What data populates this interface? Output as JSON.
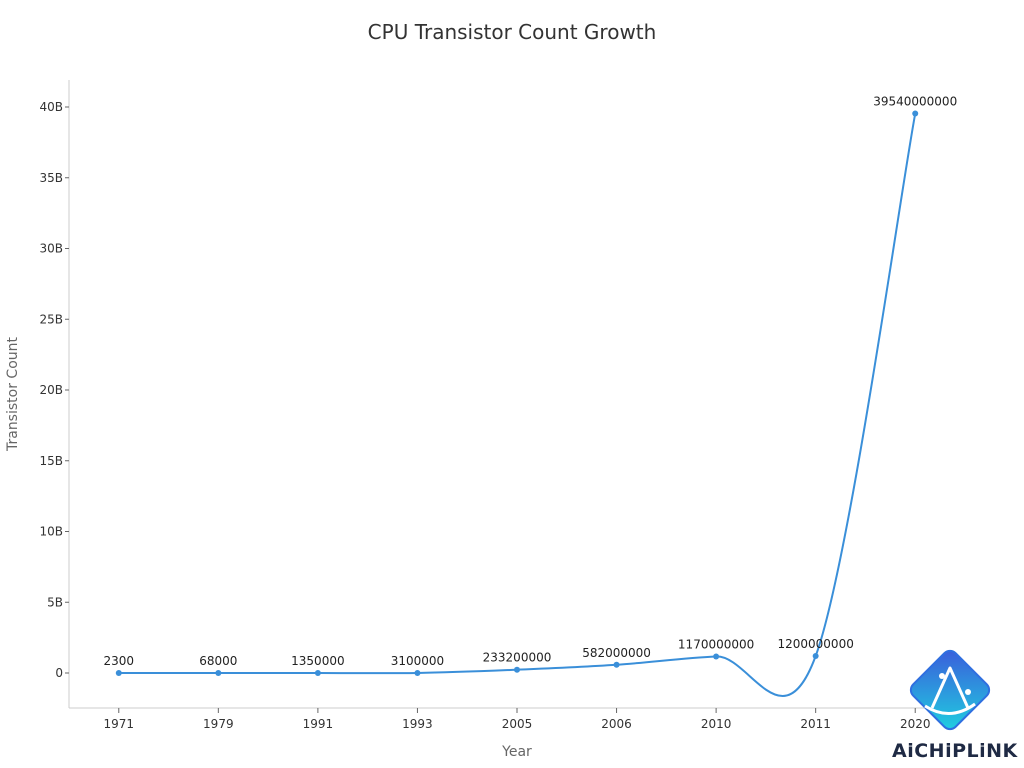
{
  "chart_data": {
    "type": "line",
    "title": "CPU Transistor Count Growth",
    "xlabel": "Year",
    "ylabel": "Transistor Count",
    "categories": [
      "1971",
      "1979",
      "1991",
      "1993",
      "2005",
      "2006",
      "2010",
      "2011",
      "2020"
    ],
    "series": [
      {
        "values": [
          2300,
          68000,
          1350000,
          3100000,
          233200000,
          582000000,
          1170000000,
          1200000000,
          39540000000
        ],
        "labels": [
          "2300",
          "68000",
          "1350000",
          "3100000",
          "233200000",
          "582000000",
          "1170000000",
          "1200000000",
          "39540000000"
        ]
      }
    ],
    "yticks": [
      0,
      5000000000,
      10000000000,
      15000000000,
      20000000000,
      25000000000,
      30000000000,
      35000000000,
      40000000000
    ],
    "ytick_labels": [
      "0",
      "5B",
      "10B",
      "15B",
      "20B",
      "25B",
      "30B",
      "35B",
      "40B"
    ],
    "ylim": [
      -2500000000,
      42000000000
    ],
    "grid": false,
    "line_color": "#3a8fd9",
    "smooth": true
  },
  "watermark": {
    "text": "AiCHiPLiNK",
    "icon": "aichiplink-logo-icon"
  }
}
